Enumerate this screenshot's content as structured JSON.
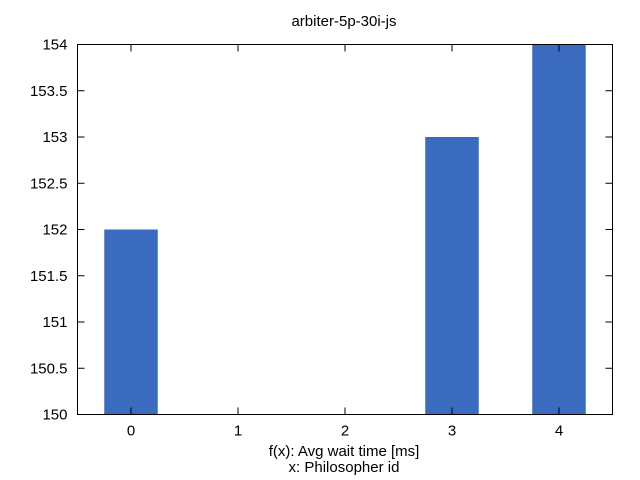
{
  "chart_data": {
    "type": "bar",
    "title": "arbiter-5p-30i-js",
    "xlabel_lines": [
      "f(x): Avg wait time [ms]",
      "x: Philosopher id"
    ],
    "categories": [
      "0",
      "1",
      "2",
      "3",
      "4"
    ],
    "values": [
      152,
      150,
      150,
      153,
      154
    ],
    "ylim": [
      150,
      154
    ],
    "yticks": [
      150,
      150.5,
      151,
      151.5,
      152,
      152.5,
      153,
      153.5,
      154
    ],
    "bar_color": "#3a6bbf",
    "grid": false,
    "legend": "none"
  }
}
